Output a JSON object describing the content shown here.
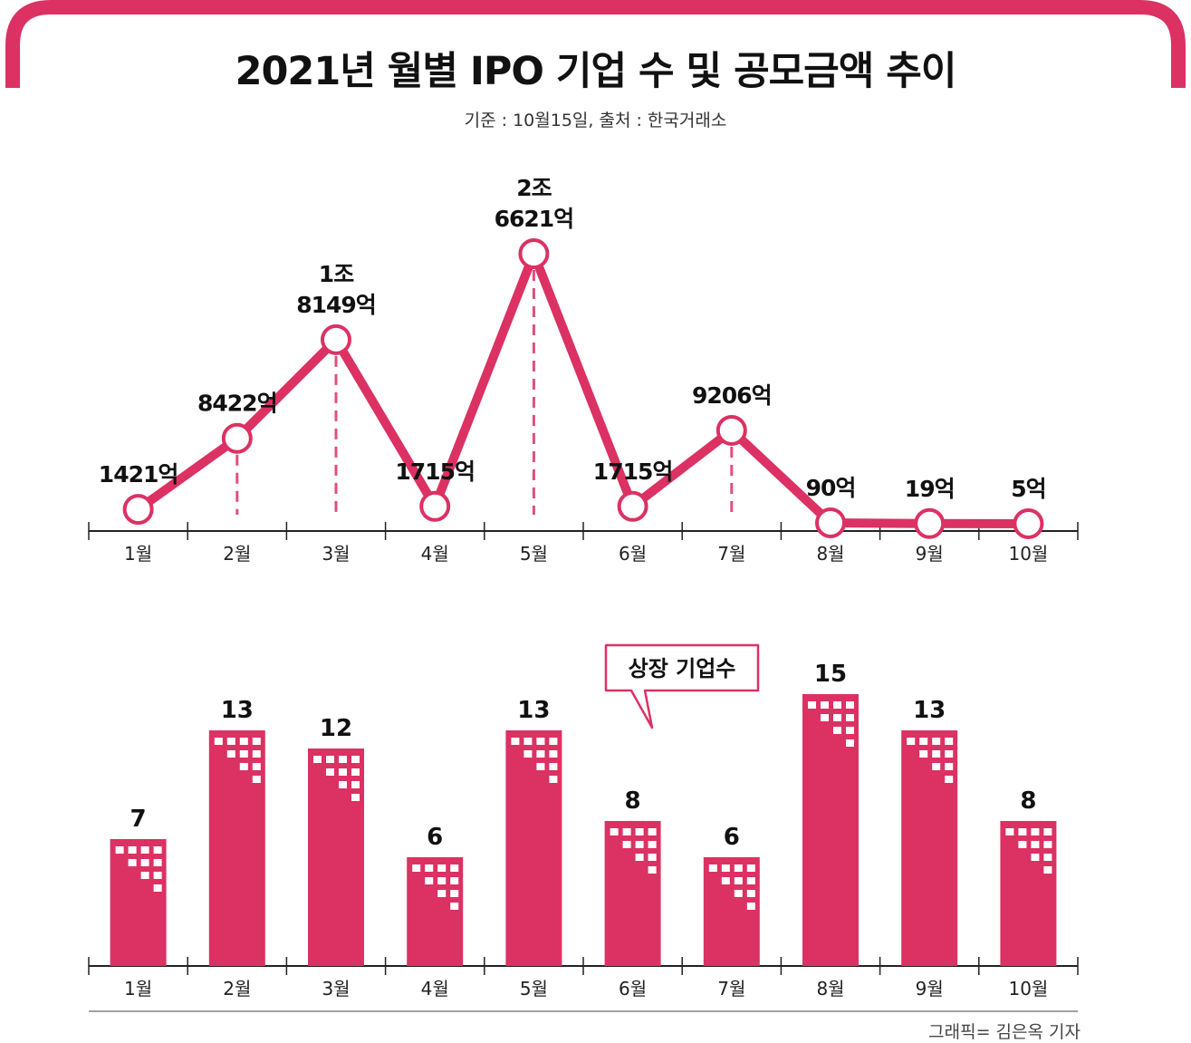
{
  "title": "2021년 월별 IPO 기업 수 및 공모금액 추이",
  "subtitle": "기준 : 10월15일, 출처 : 한국거래소",
  "credit": "그래픽= 김은옥 기자",
  "colors": {
    "accent": "#dc3163",
    "axis": "#222222",
    "text": "#111111",
    "window": "#ffffff"
  },
  "chart_data": [
    {
      "type": "line",
      "categories": [
        "1월",
        "2월",
        "3월",
        "4월",
        "5월",
        "6월",
        "7월",
        "8월",
        "9월",
        "10월"
      ],
      "values": [
        1421,
        8422,
        18149,
        1715,
        26621,
        1715,
        9206,
        90,
        19,
        5
      ],
      "data_labels": [
        [
          "1421억"
        ],
        [
          "8422억"
        ],
        [
          "1조",
          "8149억"
        ],
        [
          "1715억"
        ],
        [
          "2조",
          "6621억"
        ],
        [
          "1715억"
        ],
        [
          "9206억"
        ],
        [
          "90억"
        ],
        [
          "19억"
        ],
        [
          "5억"
        ]
      ],
      "unit": "억원",
      "ylim": [
        0,
        26621
      ],
      "grid": false
    },
    {
      "type": "bar",
      "categories": [
        "1월",
        "2월",
        "3월",
        "4월",
        "5월",
        "6월",
        "7월",
        "8월",
        "9월",
        "10월"
      ],
      "values": [
        7,
        13,
        12,
        6,
        13,
        8,
        6,
        15,
        13,
        8
      ],
      "data_labels": [
        "7",
        "13",
        "12",
        "6",
        "13",
        "8",
        "6",
        "15",
        "13",
        "8"
      ],
      "annotation": "상장 기업수",
      "ylim": [
        0,
        15
      ],
      "grid": false
    }
  ]
}
